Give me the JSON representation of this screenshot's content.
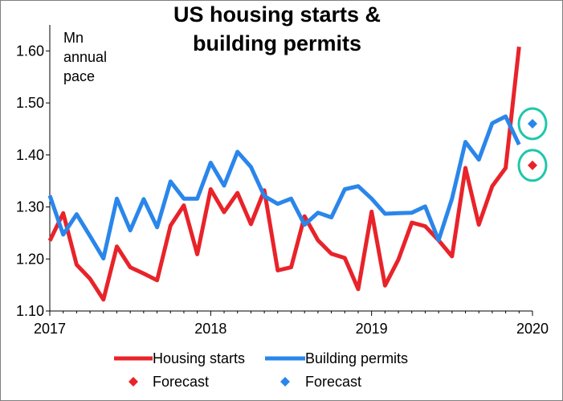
{
  "chart_data": {
    "type": "line",
    "title_lines": [
      "US housing starts &",
      "building permits"
    ],
    "unit_lines": [
      "Mn",
      "annual",
      "pace"
    ],
    "xlabel": "",
    "ylabel": "",
    "ylim": [
      1.1,
      1.65
    ],
    "xlim": [
      2017.0,
      2020.0
    ],
    "y_ticks": [
      "1.10",
      "1.20",
      "1.30",
      "1.40",
      "1.50",
      "1.60"
    ],
    "x_ticks": [
      "2017",
      "2018",
      "2019",
      "2020"
    ],
    "legend_position": "bottom",
    "grid": false,
    "series": [
      {
        "name": "Housing starts",
        "color": "#e8232a",
        "start": "2017-01",
        "frequency": "monthly",
        "values": [
          1.235,
          1.288,
          1.189,
          1.162,
          1.122,
          1.224,
          1.184,
          1.172,
          1.159,
          1.264,
          1.303,
          1.209,
          1.334,
          1.29,
          1.327,
          1.267,
          1.332,
          1.178,
          1.184,
          1.282,
          1.236,
          1.21,
          1.202,
          1.142,
          1.291,
          1.149,
          1.199,
          1.27,
          1.263,
          1.236,
          1.205,
          1.375,
          1.266,
          1.34,
          1.375,
          1.608
        ]
      },
      {
        "name": "Building permits",
        "color": "#2a86ea",
        "start": "2017-01",
        "frequency": "monthly",
        "values": [
          1.322,
          1.247,
          1.286,
          1.244,
          1.201,
          1.316,
          1.255,
          1.315,
          1.261,
          1.349,
          1.316,
          1.316,
          1.385,
          1.341,
          1.406,
          1.377,
          1.321,
          1.306,
          1.316,
          1.266,
          1.289,
          1.28,
          1.334,
          1.34,
          1.316,
          1.287,
          1.288,
          1.289,
          1.301,
          1.236,
          1.316,
          1.425,
          1.391,
          1.461,
          1.474,
          1.42
        ]
      }
    ],
    "forecasts": [
      {
        "name": "Forecast",
        "series": "Housing starts",
        "color": "#e8232a",
        "x": "2020-01",
        "value": 1.38
      },
      {
        "name": "Forecast",
        "series": "Building permits",
        "color": "#2a86ea",
        "x": "2020-01",
        "value": 1.46
      }
    ],
    "highlight_color": "#1fc7a9",
    "legend": [
      {
        "label": "Housing starts",
        "kind": "line",
        "color": "#e8232a"
      },
      {
        "label": "Building permits",
        "kind": "line",
        "color": "#2a86ea"
      },
      {
        "label": "Forecast",
        "kind": "diamond",
        "color": "#e8232a"
      },
      {
        "label": "Forecast",
        "kind": "diamond",
        "color": "#2a86ea"
      }
    ]
  }
}
